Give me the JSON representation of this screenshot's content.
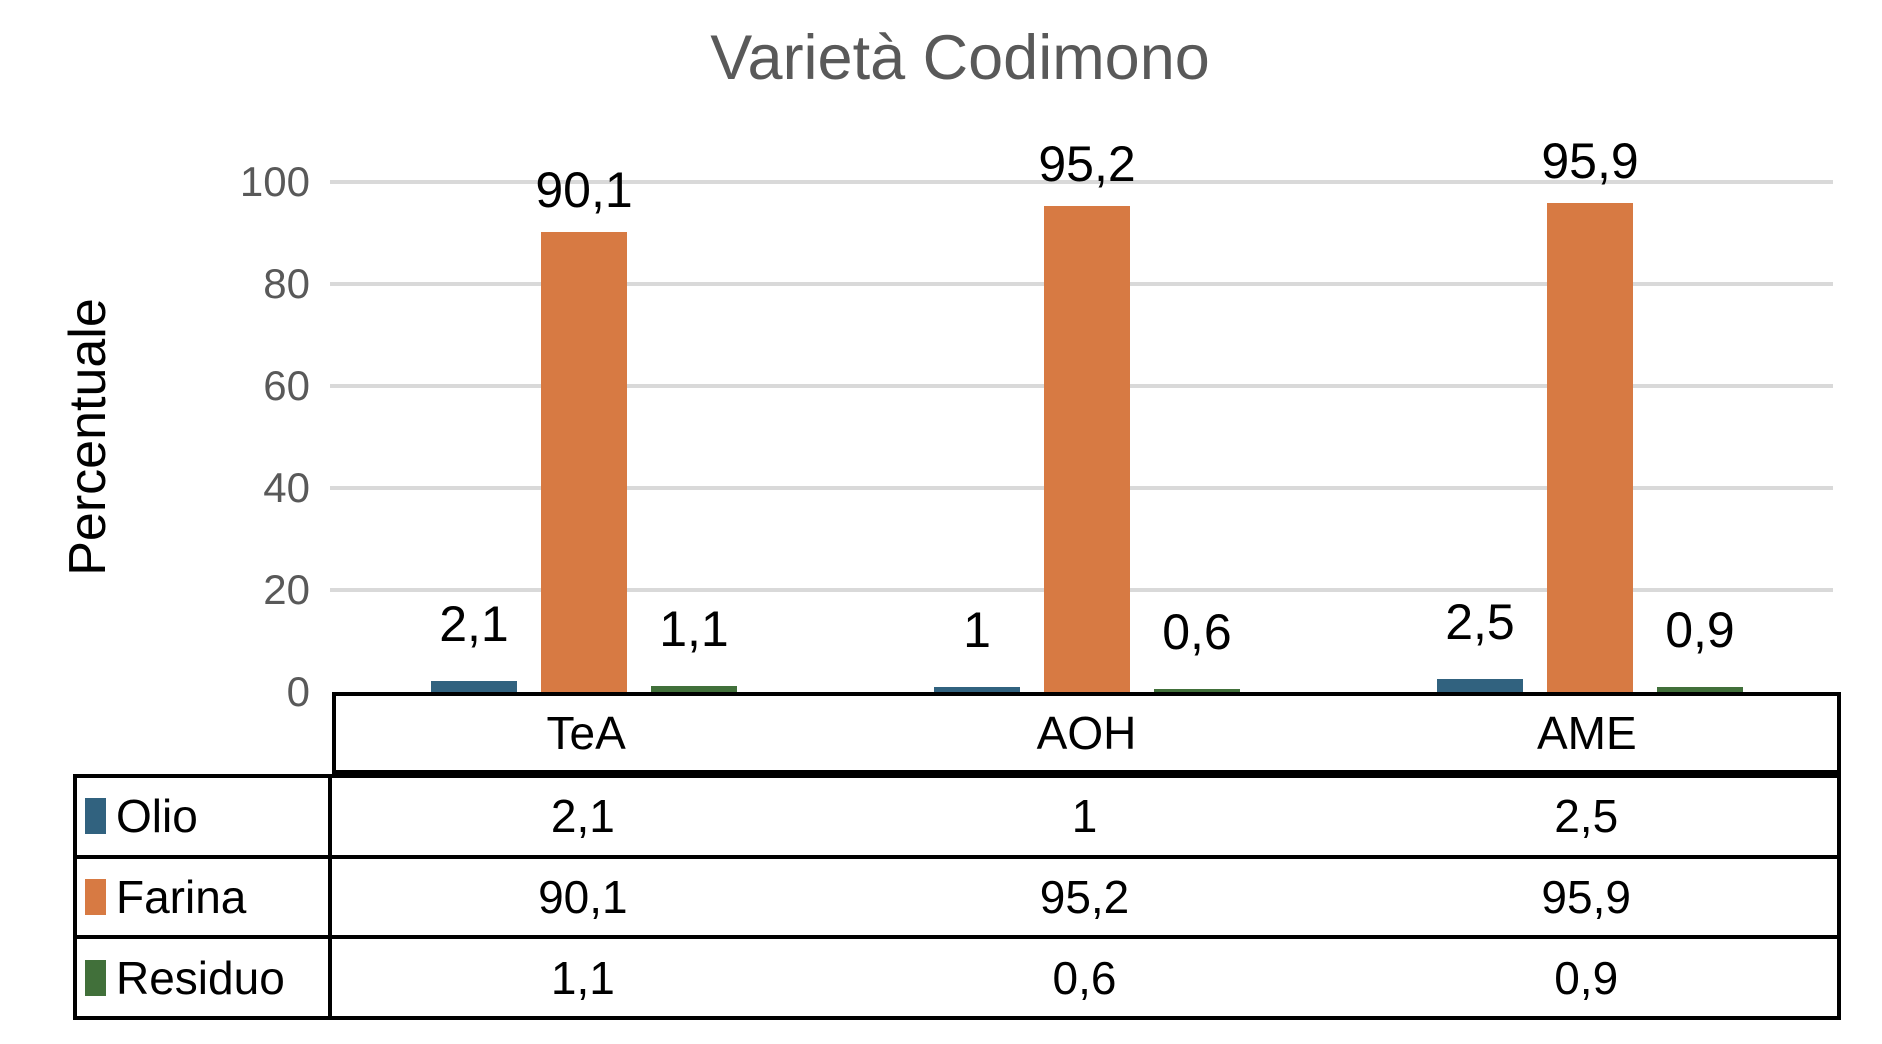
{
  "chart_data": {
    "type": "bar",
    "title": "Varietà Codimono",
    "ylabel": "Percentuale",
    "xlabel": "",
    "categories": [
      "TeA",
      "AOH",
      "AME"
    ],
    "series": [
      {
        "name": "Olio",
        "color": "#31627F",
        "values": [
          2.1,
          1,
          2.5
        ],
        "value_labels": [
          "2,1",
          "1",
          "2,5"
        ]
      },
      {
        "name": "Farina",
        "color": "#D77A43",
        "values": [
          90.1,
          95.2,
          95.9
        ],
        "value_labels": [
          "90,1",
          "95,2",
          "95,9"
        ]
      },
      {
        "name": "Residuo",
        "color": "#41703A",
        "values": [
          1.1,
          0.6,
          0.9
        ],
        "value_labels": [
          "1,1",
          "0,6",
          "0,9"
        ]
      }
    ],
    "ylim": [
      0,
      100
    ],
    "yticks": [
      0,
      20,
      40,
      60,
      80,
      100
    ],
    "grid": true,
    "data_labels": true,
    "legend_position": "data-table-left",
    "colors": {
      "title_text": "#595959",
      "tick_text": "#595959",
      "gridline": "#D9D9D9",
      "table_border": "#000000",
      "label_text": "#000000"
    }
  }
}
